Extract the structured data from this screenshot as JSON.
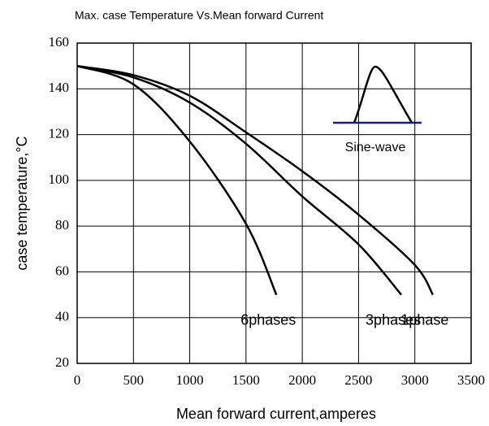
{
  "chart_data": {
    "type": "line",
    "title": "Max. case Temperature Vs.Mean forward Current",
    "x_label": "Mean forward current,amperes",
    "y_label": "case temperature,°C",
    "xlim": [
      0,
      3500
    ],
    "ylim": [
      20,
      160
    ],
    "xticks": [
      0,
      500,
      1000,
      1500,
      2000,
      2500,
      3000,
      3500
    ],
    "yticks": [
      20,
      40,
      60,
      80,
      100,
      120,
      140,
      160
    ],
    "grid": true,
    "series": [
      {
        "name": "1phase",
        "color": "#000000",
        "x": [
          0,
          500,
          1000,
          1500,
          2000,
          2500,
          3000,
          3160
        ],
        "values": [
          150,
          146,
          137,
          121,
          104,
          85,
          63,
          50
        ]
      },
      {
        "name": "3phases",
        "color": "#000000",
        "x": [
          0,
          500,
          1000,
          1500,
          2000,
          2500,
          2880
        ],
        "values": [
          150,
          145,
          134,
          116,
          93,
          72,
          50
        ]
      },
      {
        "name": "6phases",
        "color": "#000000",
        "x": [
          0,
          500,
          1000,
          1500,
          1770
        ],
        "values": [
          150,
          142,
          117,
          81,
          50
        ]
      }
    ],
    "annotations": [
      "Sine-wave"
    ]
  }
}
